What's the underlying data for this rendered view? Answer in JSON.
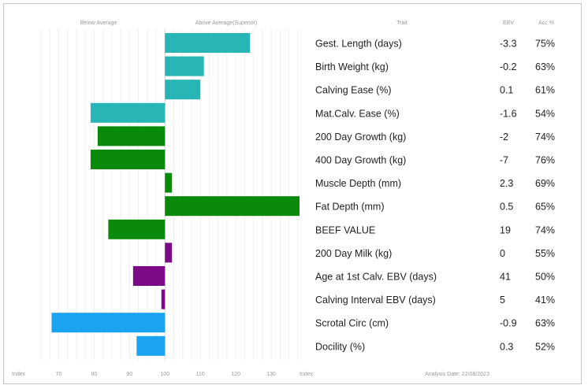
{
  "chart_data": {
    "type": "bar",
    "orientation": "horizontal",
    "header": {
      "below_label": "Below Average",
      "above_label": "Above Average(Superior)",
      "trait_col": "Trait",
      "ebv_col": "EBV",
      "acc_col": "Acc %"
    },
    "x_axis": {
      "left_end_label": "Index",
      "right_end_label": "Index",
      "ticks": [
        70,
        80,
        90,
        100,
        110,
        120,
        130
      ],
      "range": [
        63,
        140
      ],
      "baseline": 100
    },
    "analysis_date": "Analysis Date: 22/08/2023",
    "colors": {
      "teal": "#27b5b5",
      "green": "#0a8a0a",
      "purple": "#7c0a86",
      "blue": "#1aa3f0"
    },
    "rows": [
      {
        "trait": "Gest. Length (days)",
        "ebv": "-3.3",
        "acc": "75%",
        "index": 124,
        "color": "teal"
      },
      {
        "trait": "Birth Weight (kg)",
        "ebv": "-0.2",
        "acc": "63%",
        "index": 111,
        "color": "teal"
      },
      {
        "trait": "Calving Ease (%)",
        "ebv": "0.1",
        "acc": "61%",
        "index": 110,
        "color": "teal"
      },
      {
        "trait": "Mat.Calv. Ease (%)",
        "ebv": "-1.6",
        "acc": "54%",
        "index": 79,
        "color": "teal"
      },
      {
        "trait": "200 Day Growth (kg)",
        "ebv": "-2",
        "acc": "74%",
        "index": 81,
        "color": "green"
      },
      {
        "trait": "400 Day Growth (kg)",
        "ebv": "-7",
        "acc": "76%",
        "index": 79,
        "color": "green"
      },
      {
        "trait": "Muscle Depth (mm)",
        "ebv": "2.3",
        "acc": "69%",
        "index": 102,
        "color": "green"
      },
      {
        "trait": "Fat Depth (mm)",
        "ebv": "0.5",
        "acc": "65%",
        "index": 138,
        "color": "green"
      },
      {
        "trait": "BEEF VALUE",
        "ebv": "19",
        "acc": "74%",
        "index": 84,
        "color": "green"
      },
      {
        "trait": "200 Day Milk (kg)",
        "ebv": "0",
        "acc": "55%",
        "index": 102,
        "color": "purple"
      },
      {
        "trait": "Age at 1st Calv. EBV (days)",
        "ebv": "41",
        "acc": "50%",
        "index": 91,
        "color": "purple"
      },
      {
        "trait": "Calving Interval EBV (days)",
        "ebv": "5",
        "acc": "41%",
        "index": 99,
        "color": "purple"
      },
      {
        "trait": "Scrotal Circ (cm)",
        "ebv": "-0.9",
        "acc": "63%",
        "index": 68,
        "color": "blue"
      },
      {
        "trait": "Docility (%)",
        "ebv": "0.3",
        "acc": "52%",
        "index": 92,
        "color": "blue"
      }
    ]
  }
}
